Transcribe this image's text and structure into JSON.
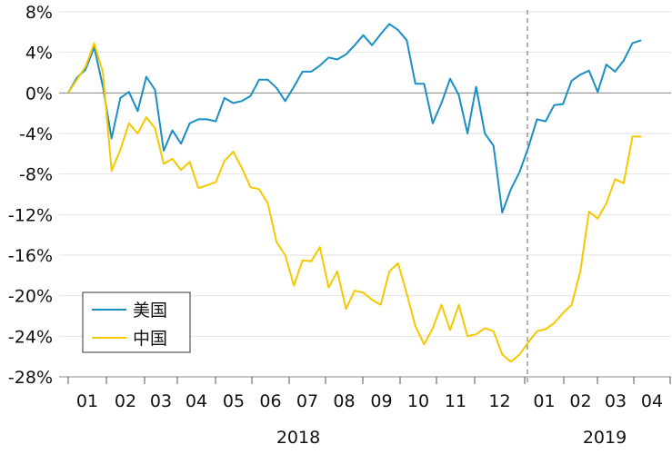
{
  "chart_data": {
    "type": "line",
    "ylim": [
      -28,
      8
    ],
    "y_ticks": [
      8,
      4,
      0,
      -4,
      -8,
      -12,
      -16,
      -20,
      -24,
      -28
    ],
    "y_tick_labels": [
      "8%",
      "4%",
      "0%",
      "-4%",
      "-8%",
      "-12%",
      "-16%",
      "-20%",
      "-24%",
      "-28%"
    ],
    "grid": "horizontal",
    "legend_position": "bottom-left",
    "x_month_labels": [
      "01",
      "02",
      "03",
      "04",
      "05",
      "06",
      "07",
      "08",
      "09",
      "10",
      "11",
      "12",
      "01",
      "02",
      "03",
      "04"
    ],
    "year_labels": [
      "2018",
      "2019"
    ],
    "period_divider": "2019-01",
    "series": [
      {
        "name": "美国",
        "color": "#1a8fc4",
        "values": [
          0.0,
          1.5,
          2.3,
          4.5,
          0.6,
          -4.5,
          -0.5,
          0.1,
          -1.8,
          1.6,
          0.3,
          -5.7,
          -3.7,
          -5.0,
          -3.0,
          -2.6,
          -2.6,
          -2.8,
          -0.5,
          -1.0,
          -0.8,
          -0.3,
          1.3,
          1.3,
          0.5,
          -0.8,
          0.6,
          2.1,
          2.1,
          2.7,
          3.5,
          3.3,
          3.8,
          4.7,
          5.7,
          4.7,
          5.8,
          6.8,
          6.2,
          5.2,
          0.9,
          0.9,
          -3.0,
          -1.0,
          1.4,
          -0.2,
          -4.0,
          0.6,
          -4.0,
          -5.2,
          -11.8,
          -9.5,
          -7.8,
          -5.4,
          -2.6,
          -2.8,
          -1.2,
          -1.1,
          1.2,
          1.8,
          2.2,
          0.1,
          2.8,
          2.1,
          3.2,
          4.9,
          5.2
        ]
      },
      {
        "name": "中国",
        "color": "#f5c800",
        "values": [
          0.0,
          1.3,
          2.6,
          4.9,
          2.0,
          -7.7,
          -5.6,
          -3.0,
          -4.0,
          -2.4,
          -3.5,
          -7.0,
          -6.5,
          -7.6,
          -6.8,
          -9.4,
          -9.1,
          -8.8,
          -6.7,
          -5.8,
          -7.4,
          -9.3,
          -9.5,
          -10.9,
          -14.7,
          -16.0,
          -19.0,
          -16.5,
          -16.6,
          -15.2,
          -19.2,
          -17.6,
          -21.3,
          -19.5,
          -19.7,
          -20.4,
          -20.9,
          -17.6,
          -16.8,
          -19.8,
          -23.0,
          -24.8,
          -23.2,
          -20.9,
          -23.4,
          -20.9,
          -24.0,
          -23.8,
          -23.2,
          -23.5,
          -25.8,
          -26.5,
          -25.8,
          -24.6,
          -23.5,
          -23.3,
          -22.7,
          -21.7,
          -20.9,
          -17.6,
          -11.7,
          -12.4,
          -10.9,
          -8.5,
          -8.9,
          -4.3,
          -4.3
        ]
      }
    ]
  }
}
